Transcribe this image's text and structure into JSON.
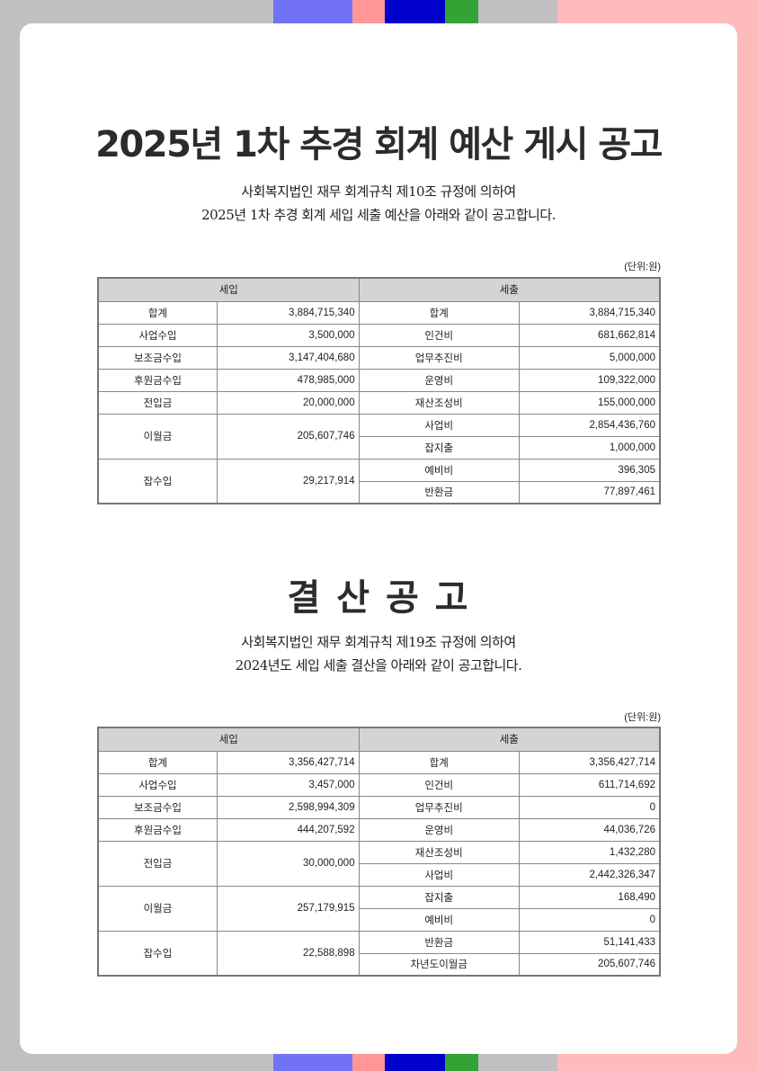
{
  "colors": {
    "stripes": [
      "#7272f5",
      "#ff9797",
      "#0000cc",
      "#35a235",
      "#c0c0c0"
    ],
    "bg_left": "#c0c0c0",
    "bg_right": "#ffbbbb",
    "header": "#d4d4d4"
  },
  "section1": {
    "title": "2025년 1차 추경 회계 예산 게시 공고",
    "intro1": "사회복지법인 재무 회계규칙 제10조 규정에 의하여",
    "intro2": "2025년 1차 추경 회계 세입 세출 예산을 아래와 같이 공고합니다.",
    "unit": "(단위:원)",
    "headers": [
      "세입",
      "세출"
    ],
    "revenue": [
      [
        "합계",
        "3,884,715,340"
      ],
      [
        "사업수입",
        "3,500,000"
      ],
      [
        "보조금수입",
        "3,147,404,680"
      ],
      [
        "후원금수입",
        "478,985,000"
      ],
      [
        "전입금",
        "20,000,000"
      ],
      [
        "이월금",
        "205,607,746"
      ],
      [
        "잡수입",
        "29,217,914"
      ]
    ],
    "expense": [
      [
        "합계",
        "3,884,715,340"
      ],
      [
        "인건비",
        "681,662,814"
      ],
      [
        "업무추진비",
        "5,000,000"
      ],
      [
        "운영비",
        "109,322,000"
      ],
      [
        "재산조성비",
        "155,000,000"
      ],
      [
        "사업비",
        "2,854,436,760"
      ],
      [
        "잡지출",
        "1,000,000"
      ],
      [
        "예비비",
        "396,305"
      ],
      [
        "반환금",
        "77,897,461"
      ]
    ]
  },
  "section2": {
    "title": "결 산 공 고",
    "intro1": "사회복지법인 재무 회계규칙 제19조 규정에 의하여",
    "intro2": "2024년도 세입 세출 결산을 아래와 같이 공고합니다.",
    "unit": "(단위:원)",
    "headers": [
      "세입",
      "세출"
    ],
    "revenue": [
      [
        "합계",
        "3,356,427,714"
      ],
      [
        "사업수입",
        "3,457,000"
      ],
      [
        "보조금수입",
        "2,598,994,309"
      ],
      [
        "후원금수입",
        "444,207,592"
      ],
      [
        "전입금",
        "30,000,000"
      ],
      [
        "이월금",
        "257,179,915"
      ],
      [
        "잡수입",
        "22,588,898"
      ]
    ],
    "expense": [
      [
        "합계",
        "3,356,427,714"
      ],
      [
        "인건비",
        "611,714,692"
      ],
      [
        "업무추진비",
        "0"
      ],
      [
        "운영비",
        "44,036,726"
      ],
      [
        "재산조성비",
        "1,432,280"
      ],
      [
        "사업비",
        "2,442,326,347"
      ],
      [
        "잡지출",
        "168,490"
      ],
      [
        "예비비",
        "0"
      ],
      [
        "반환금",
        "51,141,433"
      ],
      [
        "차년도이월금",
        "205,607,746"
      ]
    ]
  }
}
